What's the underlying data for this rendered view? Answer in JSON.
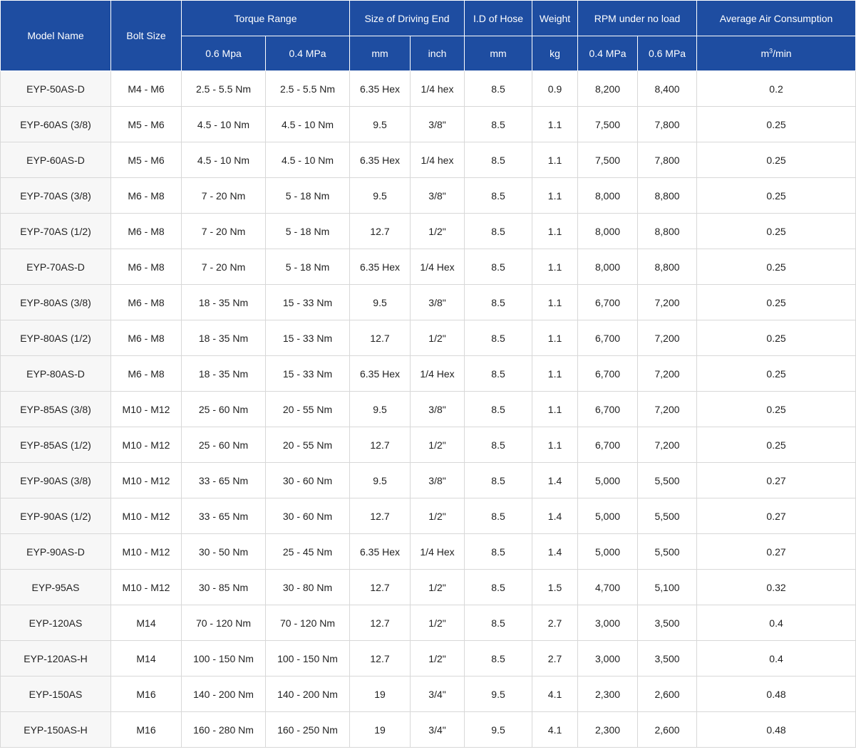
{
  "headers": {
    "model_name": "Model Name",
    "bolt_size": "Bolt Size",
    "torque_range": "Torque Range",
    "torque_06": "0.6 Mpa",
    "torque_04": "0.4 MPa",
    "driving_end": "Size of Driving End",
    "driving_mm": "mm",
    "driving_inch": "inch",
    "hose": "I.D of Hose",
    "hose_unit": "mm",
    "weight": "Weight",
    "weight_unit": "kg",
    "rpm": "RPM under no load",
    "rpm_04": "0.4 MPa",
    "rpm_06": "0.6 MPa",
    "air": "Average Air Consumption",
    "air_unit_base": "m",
    "air_unit_exp": "3",
    "air_unit_rest": "/min"
  },
  "rows": [
    {
      "model": "EYP-50AS-D",
      "bolt": "M4 - M6",
      "t06": "2.5 - 5.5 Nm",
      "t04": "2.5 - 5.5 Nm",
      "mm": "6.35 Hex",
      "inch": "1/4 hex",
      "hose": "8.5",
      "weight": "0.9",
      "rpm04": "8,200",
      "rpm06": "8,400",
      "air": "0.2"
    },
    {
      "model": "EYP-60AS (3/8)",
      "bolt": "M5 - M6",
      "t06": "4.5 - 10 Nm",
      "t04": "4.5 - 10 Nm",
      "mm": "9.5",
      "inch": "3/8\"",
      "hose": "8.5",
      "weight": "1.1",
      "rpm04": "7,500",
      "rpm06": "7,800",
      "air": "0.25"
    },
    {
      "model": "EYP-60AS-D",
      "bolt": "M5 - M6",
      "t06": "4.5 - 10 Nm",
      "t04": "4.5 - 10 Nm",
      "mm": "6.35 Hex",
      "inch": "1/4 hex",
      "hose": "8.5",
      "weight": "1.1",
      "rpm04": "7,500",
      "rpm06": "7,800",
      "air": "0.25"
    },
    {
      "model": "EYP-70AS (3/8)",
      "bolt": "M6 - M8",
      "t06": "7 - 20 Nm",
      "t04": "5 - 18 Nm",
      "mm": "9.5",
      "inch": "3/8\"",
      "hose": "8.5",
      "weight": "1.1",
      "rpm04": "8,000",
      "rpm06": "8,800",
      "air": "0.25"
    },
    {
      "model": "EYP-70AS (1/2)",
      "bolt": "M6 - M8",
      "t06": "7 - 20 Nm",
      "t04": "5 - 18 Nm",
      "mm": "12.7",
      "inch": "1/2\"",
      "hose": "8.5",
      "weight": "1.1",
      "rpm04": "8,000",
      "rpm06": "8,800",
      "air": "0.25"
    },
    {
      "model": "EYP-70AS-D",
      "bolt": "M6 - M8",
      "t06": "7 - 20 Nm",
      "t04": "5 - 18 Nm",
      "mm": "6.35 Hex",
      "inch": "1/4 Hex",
      "hose": "8.5",
      "weight": "1.1",
      "rpm04": "8,000",
      "rpm06": "8,800",
      "air": "0.25"
    },
    {
      "model": "EYP-80AS (3/8)",
      "bolt": "M6 - M8",
      "t06": "18 - 35 Nm",
      "t04": "15 - 33 Nm",
      "mm": "9.5",
      "inch": "3/8\"",
      "hose": "8.5",
      "weight": "1.1",
      "rpm04": "6,700",
      "rpm06": "7,200",
      "air": "0.25"
    },
    {
      "model": "EYP-80AS (1/2)",
      "bolt": "M6 - M8",
      "t06": "18 - 35 Nm",
      "t04": "15 - 33 Nm",
      "mm": "12.7",
      "inch": "1/2\"",
      "hose": "8.5",
      "weight": "1.1",
      "rpm04": "6,700",
      "rpm06": "7,200",
      "air": "0.25"
    },
    {
      "model": "EYP-80AS-D",
      "bolt": "M6 - M8",
      "t06": "18 - 35 Nm",
      "t04": "15 - 33 Nm",
      "mm": "6.35 Hex",
      "inch": "1/4 Hex",
      "hose": "8.5",
      "weight": "1.1",
      "rpm04": "6,700",
      "rpm06": "7,200",
      "air": "0.25"
    },
    {
      "model": "EYP-85AS (3/8)",
      "bolt": "M10 - M12",
      "t06": "25 - 60 Nm",
      "t04": "20 - 55 Nm",
      "mm": "9.5",
      "inch": "3/8\"",
      "hose": "8.5",
      "weight": "1.1",
      "rpm04": "6,700",
      "rpm06": "7,200",
      "air": "0.25"
    },
    {
      "model": "EYP-85AS (1/2)",
      "bolt": "M10 - M12",
      "t06": "25 - 60 Nm",
      "t04": "20 - 55 Nm",
      "mm": "12.7",
      "inch": "1/2\"",
      "hose": "8.5",
      "weight": "1.1",
      "rpm04": "6,700",
      "rpm06": "7,200",
      "air": "0.25"
    },
    {
      "model": "EYP-90AS (3/8)",
      "bolt": "M10 - M12",
      "t06": "33 - 65 Nm",
      "t04": "30 - 60 Nm",
      "mm": "9.5",
      "inch": "3/8\"",
      "hose": "8.5",
      "weight": "1.4",
      "rpm04": "5,000",
      "rpm06": "5,500",
      "air": "0.27"
    },
    {
      "model": "EYP-90AS (1/2)",
      "bolt": "M10 - M12",
      "t06": "33 - 65 Nm",
      "t04": "30 - 60 Nm",
      "mm": "12.7",
      "inch": "1/2\"",
      "hose": "8.5",
      "weight": "1.4",
      "rpm04": "5,000",
      "rpm06": "5,500",
      "air": "0.27"
    },
    {
      "model": "EYP-90AS-D",
      "bolt": "M10 - M12",
      "t06": "30 - 50 Nm",
      "t04": "25 - 45 Nm",
      "mm": "6.35 Hex",
      "inch": "1/4 Hex",
      "hose": "8.5",
      "weight": "1.4",
      "rpm04": "5,000",
      "rpm06": "5,500",
      "air": "0.27"
    },
    {
      "model": "EYP-95AS",
      "bolt": "M10 - M12",
      "t06": "30 - 85 Nm",
      "t04": "30 - 80 Nm",
      "mm": "12.7",
      "inch": "1/2\"",
      "hose": "8.5",
      "weight": "1.5",
      "rpm04": "4,700",
      "rpm06": "5,100",
      "air": "0.32"
    },
    {
      "model": "EYP-120AS",
      "bolt": "M14",
      "t06": "70 - 120 Nm",
      "t04": "70 - 120 Nm",
      "mm": "12.7",
      "inch": "1/2\"",
      "hose": "8.5",
      "weight": "2.7",
      "rpm04": "3,000",
      "rpm06": "3,500",
      "air": "0.4"
    },
    {
      "model": "EYP-120AS-H",
      "bolt": "M14",
      "t06": "100 - 150 Nm",
      "t04": "100 - 150 Nm",
      "mm": "12.7",
      "inch": "1/2\"",
      "hose": "8.5",
      "weight": "2.7",
      "rpm04": "3,000",
      "rpm06": "3,500",
      "air": "0.4"
    },
    {
      "model": "EYP-150AS",
      "bolt": "M16",
      "t06": "140 - 200 Nm",
      "t04": "140 - 200 Nm",
      "mm": "19",
      "inch": "3/4\"",
      "hose": "9.5",
      "weight": "4.1",
      "rpm04": "2,300",
      "rpm06": "2,600",
      "air": "0.48"
    },
    {
      "model": "EYP-150AS-H",
      "bolt": "M16",
      "t06": "160 - 280 Nm",
      "t04": "160 - 250 Nm",
      "mm": "19",
      "inch": "3/4\"",
      "hose": "9.5",
      "weight": "4.1",
      "rpm04": "2,300",
      "rpm06": "2,600",
      "air": "0.48"
    }
  ]
}
